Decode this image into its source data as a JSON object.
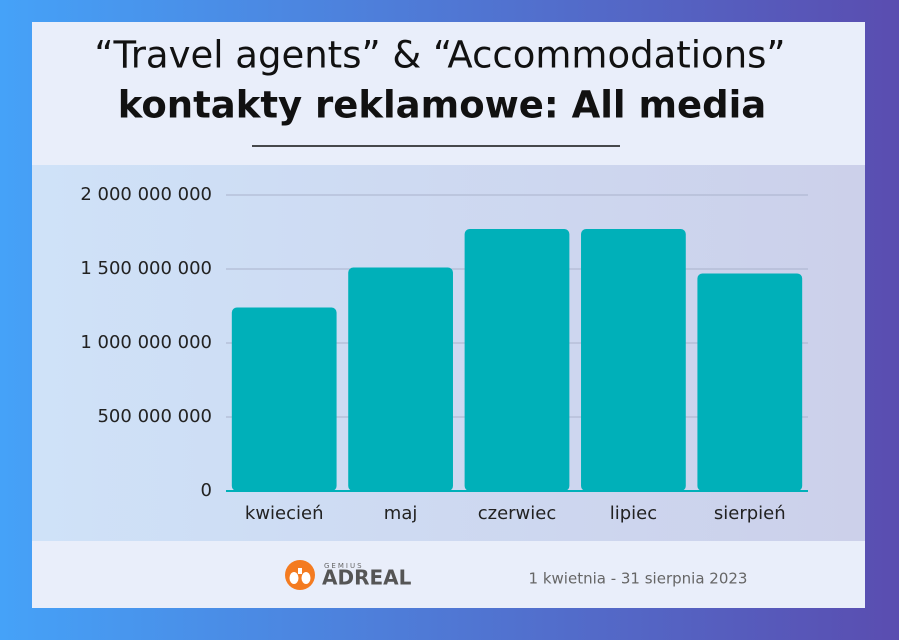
{
  "chart_data": {
    "type": "bar",
    "title": "“Travel agents” & “Accommodations”",
    "subtitle": "kontakty reklamowe: All media",
    "categories": [
      "kwiecień",
      "maj",
      "czerwiec",
      "lipiec",
      "sierpień"
    ],
    "values": [
      1240000000,
      1510000000,
      1770000000,
      1770000000,
      1470000000
    ],
    "color": "#00b0b9",
    "ylim": [
      0,
      2000000000
    ],
    "yticks": [
      0,
      {
        "value": 500000000,
        "label": "500 000 000"
      },
      {
        "value": 1000000000,
        "label": "1 000 000 000"
      },
      {
        "value": 1500000000,
        "label": "1 500 000 000"
      },
      {
        "value": 2000000000,
        "label": "2 000 000 000"
      }
    ],
    "grid": true
  },
  "footer": {
    "logo_top": "GEMIUS",
    "logo_name": "ADREAL",
    "date_range": "1 kwietnia - 31 sierpnia 2023"
  }
}
